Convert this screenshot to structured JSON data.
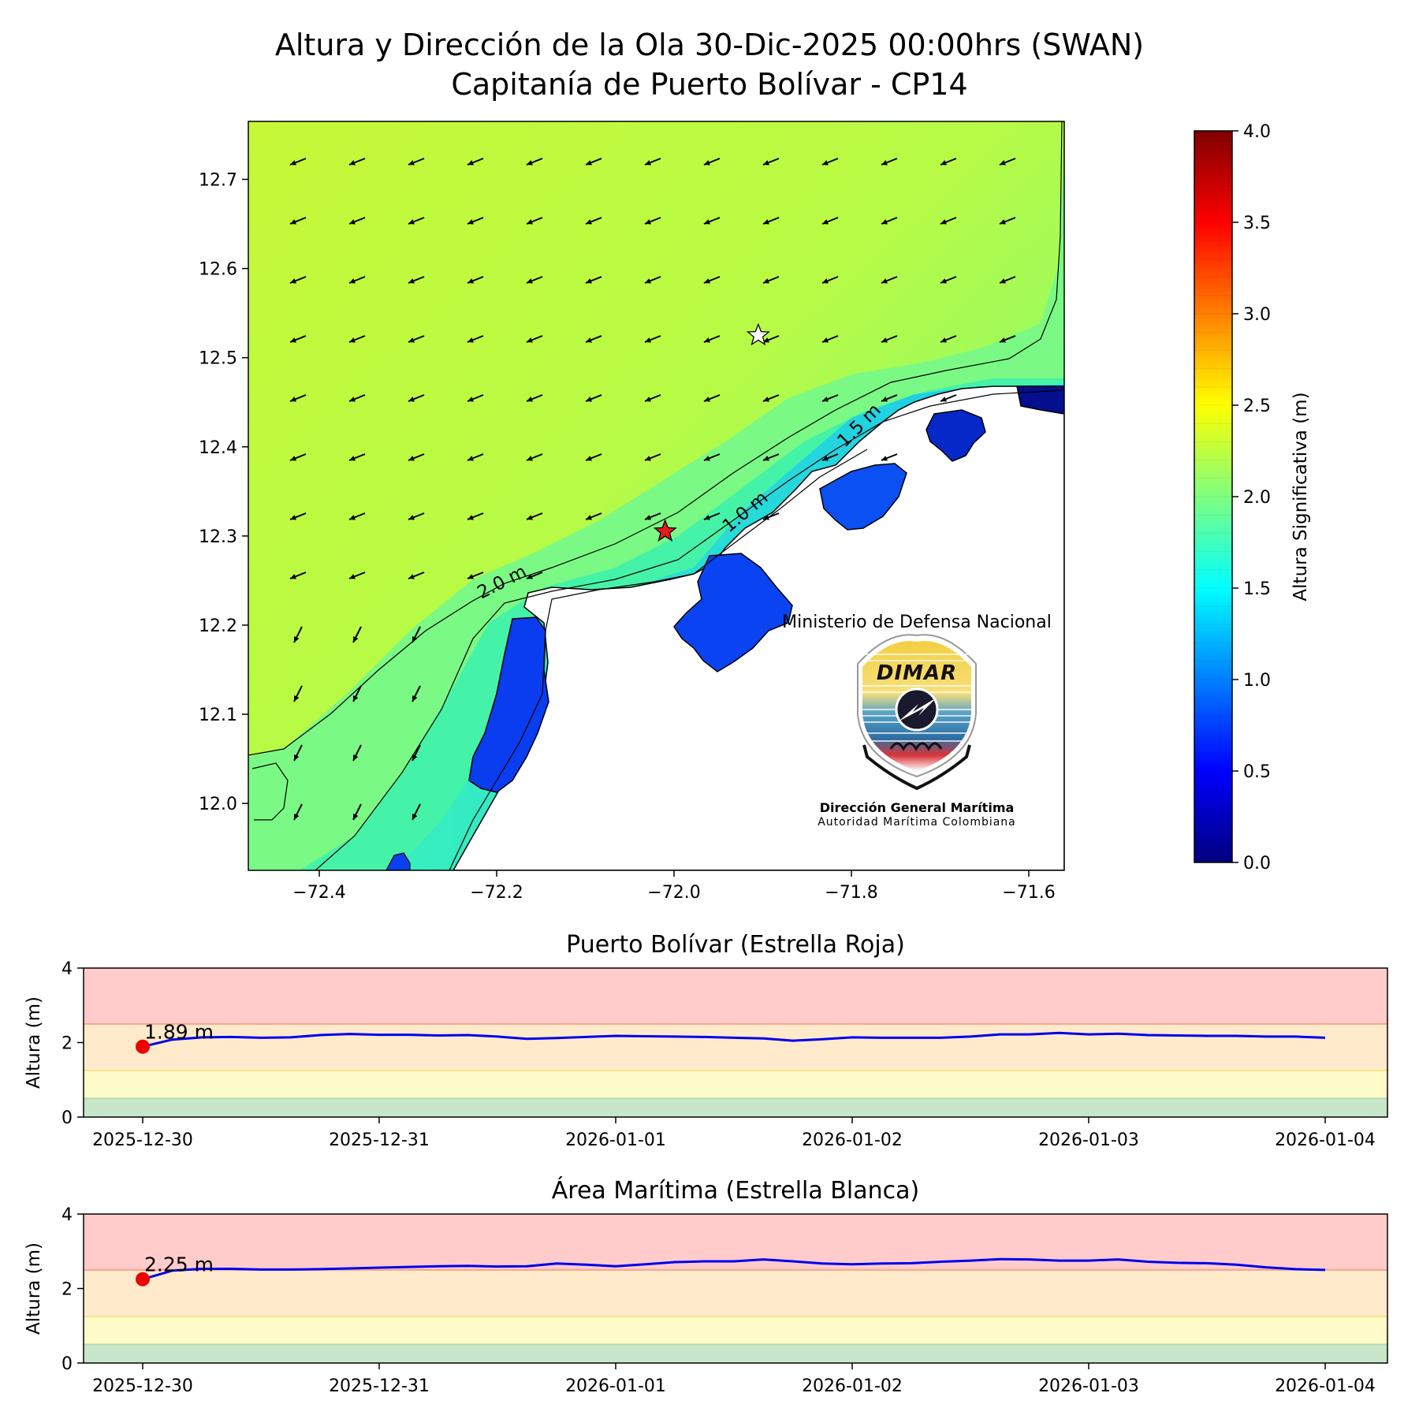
{
  "title": {
    "line1": "Altura y Dirección de la Ola 30-Dic-2025 00:00hrs (SWAN)",
    "line2": "Capitanía de Puerto Bolívar - CP14"
  },
  "map": {
    "xticks": [
      "−72.4",
      "−72.2",
      "−72.0",
      "−71.8",
      "−71.6"
    ],
    "xtick_values": [
      -72.4,
      -72.2,
      -72.0,
      -71.8,
      -71.6
    ],
    "yticks": [
      "12.7",
      "12.6",
      "12.5",
      "12.4",
      "12.3",
      "12.2",
      "12.1",
      "12.0"
    ],
    "ytick_values": [
      12.7,
      12.6,
      12.5,
      12.4,
      12.3,
      12.2,
      12.1,
      12.0
    ],
    "xlim": [
      -72.48,
      -71.56
    ],
    "ylim": [
      11.925,
      12.765
    ],
    "contour_labels": [
      "2.0 m",
      "1.5 m",
      "1.0 m"
    ],
    "red_star": {
      "lon": -72.01,
      "lat": 12.305,
      "color": "#e41a1c"
    },
    "white_star": {
      "lon": -71.905,
      "lat": 12.525,
      "color": "#ffffff"
    },
    "arrow_direction": "toward-southwest",
    "logo": {
      "top_text": "Ministerio de Defensa Nacional",
      "brand": "DIMAR",
      "name": "Dirección General Marítima",
      "subtitle": "Autoridad Marítima Colombiana"
    }
  },
  "colorbar": {
    "label": "Altura Significativa (m)",
    "ticks": [
      "4.0",
      "3.5",
      "3.0",
      "2.5",
      "2.0",
      "1.5",
      "1.0",
      "0.5",
      "0.0"
    ],
    "tick_values": [
      4.0,
      3.5,
      3.0,
      2.5,
      2.0,
      1.5,
      1.0,
      0.5,
      0.0
    ],
    "range": [
      0,
      4
    ],
    "colormap": "jet"
  },
  "chart_data": [
    {
      "type": "line",
      "title": "Puerto Bolívar (Estrella Roja)",
      "ylabel": "Altura (m)",
      "ylim": [
        0,
        4
      ],
      "yticks": [
        "0",
        "2",
        "4"
      ],
      "xticks": [
        "2025-12-30",
        "2025-12-31",
        "2026-01-01",
        "2026-01-02",
        "2026-01-03",
        "2026-01-04"
      ],
      "bands": [
        {
          "from": 0,
          "to": 0.5,
          "color": "#c8e6c9"
        },
        {
          "from": 0.5,
          "to": 1.25,
          "color": "#fffcc9"
        },
        {
          "from": 1.25,
          "to": 2.5,
          "color": "#ffeacb"
        },
        {
          "from": 2.5,
          "to": 4,
          "color": "#ffcccb"
        }
      ],
      "threshold_lines": [
        {
          "y": 0.5,
          "color": "#b7dab3"
        },
        {
          "y": 1.25,
          "color": "#f6e58b"
        },
        {
          "y": 2.5,
          "color": "#f7a58c"
        }
      ],
      "series": [
        {
          "color": "#0000ee",
          "x_days": [
            0,
            0.125,
            0.25,
            0.375,
            0.5,
            0.625,
            0.75,
            0.875,
            1,
            1.125,
            1.25,
            1.375,
            1.5,
            1.625,
            1.75,
            1.875,
            2,
            2.125,
            2.25,
            2.375,
            2.5,
            2.625,
            2.75,
            2.875,
            3,
            3.125,
            3.25,
            3.375,
            3.5,
            3.625,
            3.75,
            3.875,
            4,
            4.125,
            4.25,
            4.375,
            4.5,
            4.625,
            4.75,
            4.875,
            5
          ],
          "values": [
            1.89,
            2.08,
            2.14,
            2.15,
            2.13,
            2.14,
            2.2,
            2.23,
            2.21,
            2.21,
            2.19,
            2.2,
            2.16,
            2.1,
            2.12,
            2.15,
            2.18,
            2.17,
            2.16,
            2.15,
            2.13,
            2.11,
            2.05,
            2.09,
            2.14,
            2.13,
            2.13,
            2.13,
            2.16,
            2.22,
            2.22,
            2.26,
            2.22,
            2.24,
            2.2,
            2.19,
            2.18,
            2.18,
            2.16,
            2.16,
            2.13
          ]
        }
      ],
      "current_point": {
        "x_days": 0,
        "value": 1.89,
        "label": "1.89 m",
        "color": "#ee0000"
      }
    },
    {
      "type": "line",
      "title": "Área Marítima (Estrella Blanca)",
      "ylabel": "Altura (m)",
      "ylim": [
        0,
        4
      ],
      "yticks": [
        "0",
        "2",
        "4"
      ],
      "xticks": [
        "2025-12-30",
        "2025-12-31",
        "2026-01-01",
        "2026-01-02",
        "2026-01-03",
        "2026-01-04"
      ],
      "bands": [
        {
          "from": 0,
          "to": 0.5,
          "color": "#c8e6c9"
        },
        {
          "from": 0.5,
          "to": 1.25,
          "color": "#fffcc9"
        },
        {
          "from": 1.25,
          "to": 2.5,
          "color": "#ffeacb"
        },
        {
          "from": 2.5,
          "to": 4,
          "color": "#ffcccb"
        }
      ],
      "threshold_lines": [
        {
          "y": 0.5,
          "color": "#b7dab3"
        },
        {
          "y": 1.25,
          "color": "#f6e58b"
        },
        {
          "y": 2.5,
          "color": "#f7a58c"
        }
      ],
      "series": [
        {
          "color": "#0000ee",
          "x_days": [
            0,
            0.125,
            0.25,
            0.375,
            0.5,
            0.625,
            0.75,
            0.875,
            1,
            1.125,
            1.25,
            1.375,
            1.5,
            1.625,
            1.75,
            1.875,
            2,
            2.125,
            2.25,
            2.375,
            2.5,
            2.625,
            2.75,
            2.875,
            3,
            3.125,
            3.25,
            3.375,
            3.5,
            3.625,
            3.75,
            3.875,
            4,
            4.125,
            4.25,
            4.375,
            4.5,
            4.625,
            4.75,
            4.875,
            5
          ],
          "values": [
            2.25,
            2.48,
            2.53,
            2.53,
            2.51,
            2.51,
            2.52,
            2.54,
            2.56,
            2.58,
            2.6,
            2.61,
            2.59,
            2.6,
            2.67,
            2.64,
            2.6,
            2.65,
            2.71,
            2.73,
            2.73,
            2.78,
            2.73,
            2.67,
            2.65,
            2.67,
            2.68,
            2.72,
            2.75,
            2.79,
            2.78,
            2.75,
            2.75,
            2.78,
            2.72,
            2.69,
            2.68,
            2.64,
            2.57,
            2.52,
            2.5
          ]
        }
      ],
      "current_point": {
        "x_days": 0,
        "value": 2.25,
        "label": "2.25 m",
        "color": "#ee0000"
      }
    }
  ]
}
